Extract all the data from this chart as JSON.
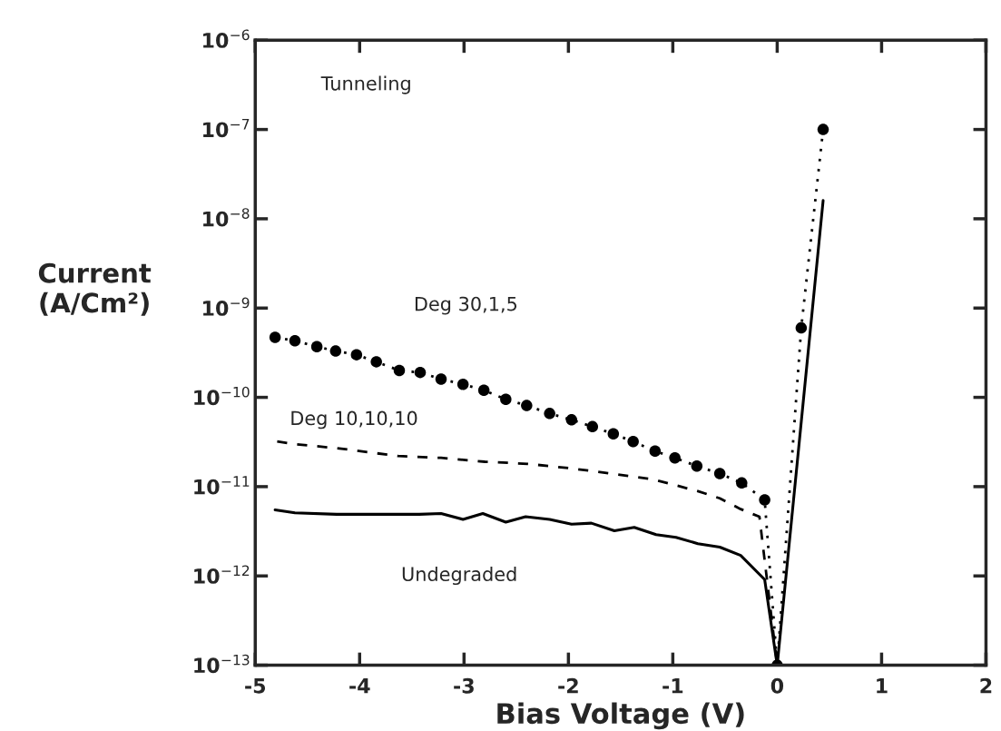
{
  "chart_data": {
    "type": "line",
    "xlabel": "Bias Voltage (V)",
    "ylabel": "Current\n(A/Cm²)",
    "log": "y",
    "grid": false,
    "legend": false,
    "xlim": [
      -5,
      2
    ],
    "xticks": [
      -5,
      -4,
      -3,
      -2,
      -1,
      0,
      1,
      2
    ],
    "ylim": [
      1e-13,
      1e-06
    ],
    "yticks": [
      {
        "value": 1e-13,
        "label": "10$^{−13}$"
      },
      {
        "value": 1e-12,
        "label": "10$^{−12}$"
      },
      {
        "value": 1e-11,
        "label": "10$^{−11}$"
      },
      {
        "value": 1e-10,
        "label": "10$^{−10}$"
      },
      {
        "value": 1e-09,
        "label": "10$^{−9}$"
      },
      {
        "value": 1e-08,
        "label": "10$^{−8}$"
      },
      {
        "value": 1e-07,
        "label": "10$^{−7}$"
      },
      {
        "value": 1e-06,
        "label": "10$^{−6}$"
      }
    ],
    "annotations": [
      "Tunneling"
    ],
    "series": [
      {
        "name": "Deg 30,1,5",
        "color": "#000000",
        "marker": "circle",
        "line_style": "dotted",
        "x": [
          -4.81,
          -4.62,
          -4.41,
          -4.23,
          -4.03,
          -3.84,
          -3.62,
          -3.42,
          -3.22,
          -3.01,
          -2.81,
          -2.6,
          -2.4,
          -2.18,
          -1.97,
          -1.77,
          -1.57,
          -1.38,
          -1.17,
          -0.98,
          -0.77,
          -0.55,
          -0.34,
          -0.12,
          0,
          0.23,
          0.44
        ],
        "values": [
          4.7e-10,
          4.3e-10,
          3.7e-10,
          3.3e-10,
          3e-10,
          2.5e-10,
          2e-10,
          1.9e-10,
          1.6e-10,
          1.4e-10,
          1.2e-10,
          9.5e-11,
          8.1e-11,
          6.6e-11,
          5.6e-11,
          4.7e-11,
          3.9e-11,
          3.2e-11,
          2.5e-11,
          2.1e-11,
          1.7e-11,
          1.4e-11,
          1.1e-11,
          7.1e-12,
          1e-13,
          6e-10,
          1e-07
        ]
      },
      {
        "name": "Deg 10,10,10",
        "color": "#000000",
        "marker": "none",
        "line_style": "dashed",
        "x": [
          -4.79,
          -4.64,
          -4.22,
          -3.63,
          -3.22,
          -2.8,
          -2.39,
          -1.97,
          -1.59,
          -1.18,
          -0.76,
          -0.55,
          -0.35,
          -0.17,
          0
        ],
        "values": [
          3.2e-11,
          3e-11,
          2.7e-11,
          2.2e-11,
          2.1e-11,
          1.9e-11,
          1.8e-11,
          1.6e-11,
          1.4e-11,
          1.2e-11,
          8.9e-12,
          7.4e-12,
          5.6e-12,
          4.6e-12,
          1e-13
        ]
      },
      {
        "name": "Undegraded",
        "color": "#000000",
        "marker": "none",
        "line_style": "solid",
        "x": [
          -4.81,
          -4.62,
          -4.22,
          -3.43,
          -3.22,
          -3.01,
          -2.82,
          -2.6,
          -2.41,
          -2.18,
          -1.97,
          -1.78,
          -1.56,
          -1.37,
          -1.16,
          -0.97,
          -0.76,
          -0.55,
          -0.35,
          -0.12,
          0,
          0.44
        ],
        "values": [
          5.5e-12,
          5.1e-12,
          4.9e-12,
          4.9e-12,
          5e-12,
          4.3e-12,
          5e-12,
          4e-12,
          4.6e-12,
          4.3e-12,
          3.8e-12,
          3.9e-12,
          3.2e-12,
          3.5e-12,
          2.9e-12,
          2.7e-12,
          2.3e-12,
          2.1e-12,
          1.7e-12,
          9.1e-13,
          1e-13,
          1.6e-08
        ]
      }
    ]
  }
}
